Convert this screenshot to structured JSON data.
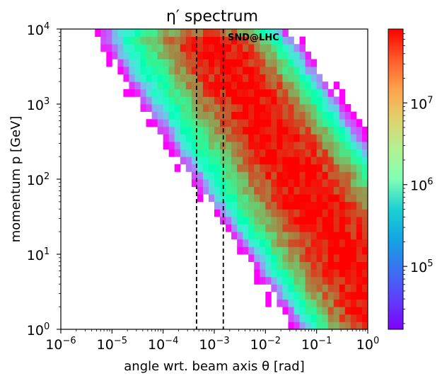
{
  "chart_data": {
    "type": "heatmap",
    "title": "η′ spectrum",
    "xlabel": "angle wrt. beam axis θ [rad]",
    "ylabel": "momentum p [GeV]",
    "xscale": "log",
    "yscale": "log",
    "xlim": [
      1e-06,
      1
    ],
    "ylim": [
      1,
      10000
    ],
    "x_ticks": [
      {
        "base": "10",
        "exp": "−6"
      },
      {
        "base": "10",
        "exp": "−5"
      },
      {
        "base": "10",
        "exp": "−4"
      },
      {
        "base": "10",
        "exp": "−3"
      },
      {
        "base": "10",
        "exp": "−2"
      },
      {
        "base": "10",
        "exp": "−1"
      },
      {
        "base": "10",
        "exp": "0"
      }
    ],
    "y_ticks": [
      {
        "base": "10",
        "exp": "0"
      },
      {
        "base": "10",
        "exp": "1"
      },
      {
        "base": "10",
        "exp": "2"
      },
      {
        "base": "10",
        "exp": "3"
      },
      {
        "base": "10",
        "exp": "4"
      }
    ],
    "colorbar": {
      "scale": "log",
      "range": [
        17000,
        80000000
      ],
      "colormap": "rainbow",
      "ticks": [
        {
          "value": 100000,
          "base": "10",
          "exp": "5"
        },
        {
          "value": 1000000,
          "base": "10",
          "exp": "6"
        },
        {
          "value": 10000000,
          "base": "10",
          "exp": "7"
        }
      ]
    },
    "ridge": {
      "description": "peak density along log10(p) = 0.5 - 1.12*log10(theta); approx p*theta ≈ 3 GeV·rad at large p",
      "log10_p_intercept": 0.5,
      "slope": -1.12
    },
    "reference_lines": [
      {
        "theta": 0.00045,
        "style": "dashed",
        "color": "#000000"
      },
      {
        "theta": 0.0015,
        "style": "dashed",
        "color": "#000000"
      }
    ],
    "annotation": "SND@LHC",
    "grid": false
  }
}
